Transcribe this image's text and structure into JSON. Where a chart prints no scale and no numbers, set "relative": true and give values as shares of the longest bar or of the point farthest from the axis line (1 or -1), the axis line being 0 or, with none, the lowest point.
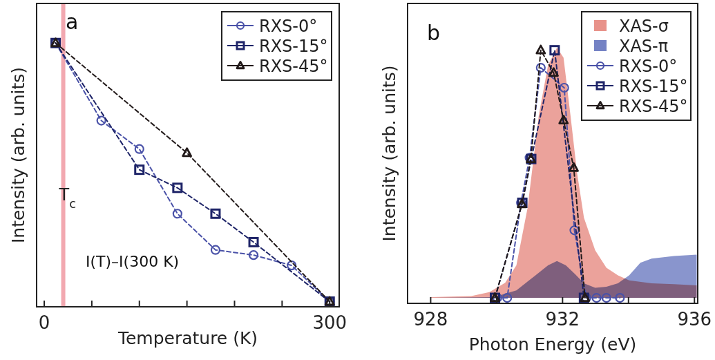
{
  "chart_data": [
    {
      "type": "line",
      "xlabel": "Temperature (K)",
      "ylabel": "Intensity (arb. units)",
      "relative": true,
      "xlim": [
        -8,
        310
      ],
      "xticks": [
        0,
        {
          "value": 50,
          "label": null
        },
        {
          "value": 100,
          "label": null
        },
        {
          "value": 150,
          "label": null
        },
        {
          "value": 200,
          "label": null
        },
        {
          "value": 250,
          "label": null
        },
        300
      ],
      "legend": "top right",
      "line_style": "dashed",
      "annotations": [
        "a",
        "I(T)–I(300 K)"
      ],
      "ref_lines": [
        {
          "axis": "x",
          "value": 20,
          "label": "T$_{c}$",
          "color": "#f2a8b0"
        }
      ],
      "series": [
        {
          "name": "RXS-0°",
          "color": "#4a52a8",
          "marker": "circle",
          "x": [
            12,
            60,
            100,
            140,
            180,
            220,
            260,
            300
          ],
          "values": [
            1,
            0.7,
            0.59,
            0.34,
            0.2,
            0.18,
            0.14,
            0
          ]
        },
        {
          "name": "RXS-15°",
          "color": "#1e2468",
          "marker": "square",
          "x": [
            12,
            100,
            140,
            180,
            220,
            300
          ],
          "values": [
            1,
            0.51,
            0.44,
            0.34,
            0.23,
            0
          ]
        },
        {
          "name": "RXS-45°",
          "color": "#221a1a",
          "marker": "triangle",
          "x": [
            12,
            150,
            300
          ],
          "values": [
            1,
            0.575,
            0
          ]
        }
      ]
    },
    {
      "type": "line",
      "xlabel": "Photon Energy (eV)",
      "ylabel": "Intensity (arb. units)",
      "relative": true,
      "xlim": [
        927.3,
        936.1
      ],
      "xticks": [
        928,
        {
          "value": 930,
          "label": null
        },
        932,
        {
          "value": 934,
          "label": null
        },
        936
      ],
      "legend": "top right",
      "line_style": "dashed",
      "annotations": [
        "b"
      ],
      "series": [
        {
          "name": "XAS-σ",
          "type": "area",
          "color": "#e8928a",
          "x": [
            928,
            929.23,
            929.78,
            930.26,
            930.6,
            930.94,
            931.28,
            931.56,
            931.83,
            932.03,
            932.24,
            932.44,
            932.65,
            932.99,
            933.33,
            933.68,
            934.02,
            934.7,
            935.38,
            936.07
          ],
          "values": [
            0.003,
            0.007,
            0.023,
            0.06,
            0.13,
            0.36,
            0.73,
            0.93,
            1,
            0.96,
            0.73,
            0.5,
            0.32,
            0.19,
            0.12,
            0.09,
            0.07,
            0.058,
            0.055,
            0.05
          ]
        },
        {
          "name": "XAS-π",
          "type": "area",
          "color": "#7482c4",
          "x": [
            928,
            929.91,
            930.6,
            931.14,
            931.56,
            931.83,
            932.1,
            932.38,
            932.65,
            932.99,
            933.33,
            933.68,
            934.02,
            934.36,
            934.7,
            935.38,
            936.07
          ],
          "values": [
            0,
            0.003,
            0.03,
            0.086,
            0.13,
            0.147,
            0.13,
            0.095,
            0.058,
            0.04,
            0.044,
            0.058,
            0.09,
            0.14,
            0.157,
            0.167,
            0.173
          ]
        },
        {
          "name": "RXS-0°",
          "color": "#4a52a8",
          "marker": "circle",
          "x": [
            930.02,
            930.32,
            930.74,
            931.0,
            931.34,
            932.05,
            932.36,
            932.72,
            933.03,
            933.33,
            933.74
          ],
          "values": [
            0,
            0,
            0.38,
            0.56,
            0.92,
            0.84,
            0.27,
            0,
            0,
            0,
            0
          ]
        },
        {
          "name": "RXS-15°",
          "color": "#1e2468",
          "marker": "square",
          "x": [
            929.95,
            930.78,
            931.05,
            931.76,
            932.65
          ],
          "values": [
            0,
            0.38,
            0.555,
            0.99,
            0
          ]
        },
        {
          "name": "RXS-45°",
          "color": "#221a1a",
          "marker": "triangle",
          "x": [
            929.95,
            930.77,
            931.04,
            931.34,
            931.73,
            932.03,
            932.34,
            932.68
          ],
          "values": [
            0,
            0.375,
            0.555,
            0.99,
            0.9,
            0.71,
            0.52,
            0
          ]
        }
      ]
    }
  ]
}
